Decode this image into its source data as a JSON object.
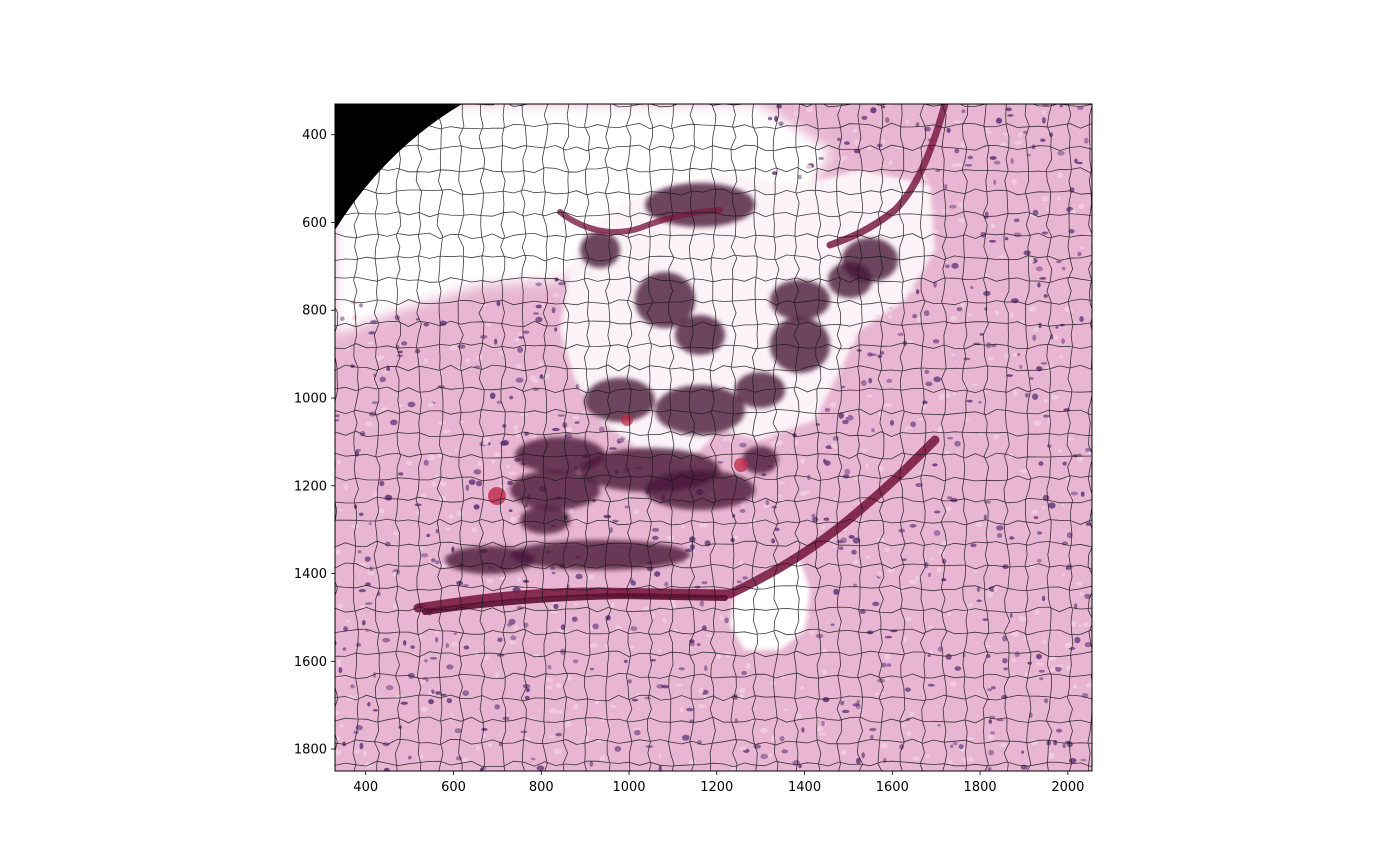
{
  "figure": {
    "kind": "histology image (H&E stain) with cell-segmentation outline overlay",
    "palette": {
      "tissue_base": "#e8b6d2",
      "tissue_light": "#f1cde0",
      "nucleus": "#5a2f73",
      "dense_tissue": "#4a1838",
      "blood": "#c02848",
      "fiber": "#7a1c44",
      "mask_corner": "#000000",
      "outline": "#1a1a1a",
      "background": "#ffffff"
    }
  },
  "axes": {
    "xlim": [
      330,
      2055
    ],
    "ylim": [
      1850,
      330
    ],
    "x_ticks": [
      400,
      600,
      800,
      1000,
      1200,
      1400,
      1600,
      1800,
      2000
    ],
    "y_ticks": [
      400,
      600,
      800,
      1000,
      1200,
      1400,
      1600,
      1800
    ],
    "x_tick_labels": [
      "400",
      "600",
      "800",
      "1000",
      "1200",
      "1400",
      "1600",
      "1800",
      "2000"
    ],
    "y_tick_labels": [
      "400",
      "600",
      "800",
      "1000",
      "1200",
      "1400",
      "1600",
      "1800"
    ]
  }
}
